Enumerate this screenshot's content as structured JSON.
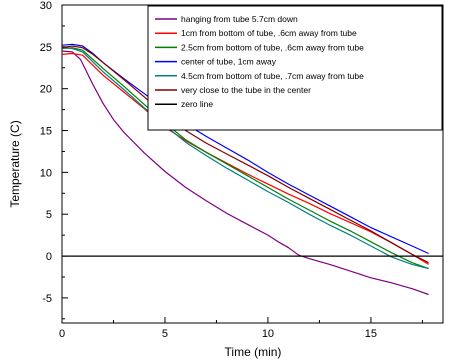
{
  "chart_data": {
    "type": "line",
    "title": "",
    "xlabel": "Time (min)",
    "ylabel": "Temperature (C)",
    "xlim": [
      0,
      18.5
    ],
    "ylim": [
      -8,
      30
    ],
    "x_ticks": [
      0,
      5,
      10,
      15
    ],
    "y_ticks": [
      -5,
      0,
      5,
      10,
      15,
      20,
      25,
      30
    ],
    "grid": false,
    "legend_position": "top-right",
    "series": [
      {
        "name": "hanging from tube 5.7cm down",
        "color": "#800080",
        "x": [
          0,
          0.5,
          0.9,
          1.5,
          2,
          2.5,
          3,
          4,
          5,
          6,
          7,
          8,
          9,
          10,
          10.5,
          11,
          11.5,
          12,
          13,
          14,
          15,
          16,
          17,
          17.8
        ],
        "y": [
          24.5,
          24.4,
          23.5,
          20.5,
          18.2,
          16.3,
          14.8,
          12.3,
          10.1,
          8.2,
          6.6,
          5.1,
          3.8,
          2.5,
          1.7,
          1.0,
          0.1,
          -0.3,
          -1.0,
          -1.8,
          -2.6,
          -3.2,
          -3.9,
          -4.6
        ]
      },
      {
        "name": "1cm from bottom of tube, .6cm away from tube",
        "color": "#ff0000",
        "x": [
          0,
          0.5,
          1,
          1.5,
          2,
          3,
          4,
          5,
          6,
          7,
          8,
          9,
          10,
          11,
          12,
          13,
          14,
          15,
          16,
          17,
          17.8
        ],
        "y": [
          24.1,
          24.2,
          24.0,
          22.8,
          21.6,
          19.6,
          17.6,
          15.4,
          13.8,
          12.4,
          11.1,
          9.8,
          8.6,
          7.4,
          6.3,
          5.1,
          4.0,
          2.9,
          1.6,
          0.2,
          -1.0
        ]
      },
      {
        "name": "2.5cm from bottom of tube, .6cm away from tube",
        "color": "#008000",
        "x": [
          0,
          0.5,
          1,
          1.5,
          2,
          3,
          4,
          5,
          6,
          7,
          8,
          9,
          10,
          11,
          12,
          13,
          14,
          15,
          16,
          17,
          17.8
        ],
        "y": [
          24.8,
          24.9,
          24.6,
          23.5,
          22.4,
          20.3,
          18.1,
          15.9,
          13.9,
          12.4,
          11.0,
          9.6,
          8.2,
          6.8,
          5.5,
          4.2,
          3.0,
          1.7,
          0.4,
          -0.8,
          -1.5
        ]
      },
      {
        "name": "center of tube, 1cm away",
        "color": "#0000ff",
        "x": [
          0,
          0.5,
          1,
          1.5,
          2,
          3,
          4,
          5,
          6,
          7,
          8,
          9,
          10,
          11,
          12,
          13,
          14,
          15,
          16,
          17,
          17.8
        ],
        "y": [
          25.2,
          25.3,
          25.1,
          24.2,
          23.1,
          21.2,
          19.4,
          17.5,
          15.8,
          14.3,
          12.9,
          11.5,
          10.0,
          8.6,
          7.3,
          6.0,
          4.7,
          3.4,
          2.3,
          1.2,
          0.3
        ]
      },
      {
        "name": "4.5cm from bottom of tube, .7cm away from tube",
        "color": "#008080",
        "x": [
          0,
          0.5,
          1,
          1.5,
          2,
          3,
          4,
          5,
          6,
          7,
          8,
          9,
          10,
          11,
          12,
          13,
          14,
          15,
          16,
          17,
          17.8
        ],
        "y": [
          24.9,
          24.8,
          24.4,
          23.2,
          22.0,
          19.9,
          17.7,
          15.6,
          13.6,
          12.0,
          10.5,
          9.1,
          7.7,
          6.4,
          5.0,
          3.7,
          2.5,
          1.2,
          -0.1,
          -1.0,
          -1.5
        ]
      },
      {
        "name": "very close to the tube in the center",
        "color": "#800000",
        "x": [
          0,
          0.5,
          1,
          1.5,
          2,
          3,
          4,
          5,
          6,
          7,
          8,
          9,
          10,
          11,
          12,
          13,
          14,
          15,
          16,
          17,
          17.8
        ],
        "y": [
          24.9,
          25.1,
          24.9,
          24.1,
          23.1,
          21.1,
          19.0,
          16.9,
          15.0,
          13.5,
          12.2,
          10.9,
          9.6,
          8.2,
          6.9,
          5.6,
          4.3,
          3.0,
          1.6,
          0.2,
          -0.8
        ]
      },
      {
        "name": "zero line",
        "color": "#000000",
        "x": [
          0,
          18.5
        ],
        "y": [
          0,
          0
        ]
      }
    ]
  }
}
